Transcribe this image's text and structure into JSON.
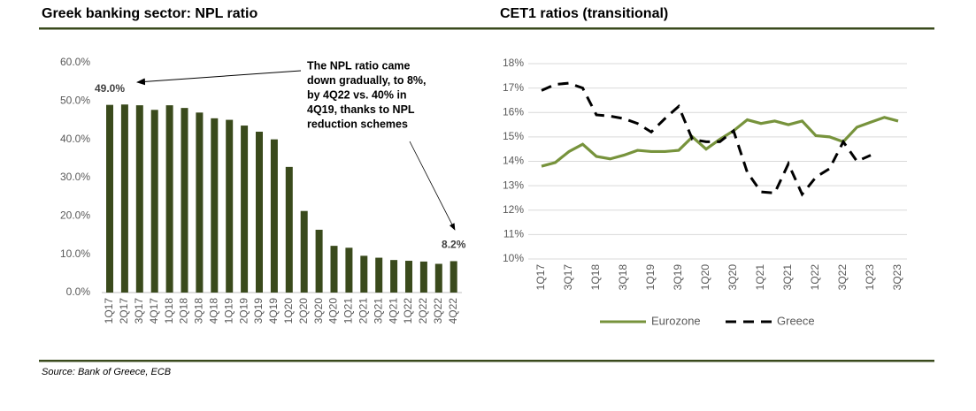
{
  "chart_data": [
    {
      "type": "bar",
      "title": "Greek banking sector: NPL ratio",
      "categories": [
        "1Q17",
        "2Q17",
        "3Q17",
        "4Q17",
        "1Q18",
        "2Q18",
        "3Q18",
        "4Q18",
        "1Q19",
        "2Q19",
        "3Q19",
        "4Q19",
        "1Q20",
        "2Q20",
        "3Q20",
        "4Q20",
        "1Q21",
        "2Q21",
        "3Q21",
        "4Q21",
        "1Q22",
        "2Q22",
        "3Q22",
        "4Q22"
      ],
      "values": [
        49.0,
        49.1,
        48.9,
        47.7,
        48.9,
        48.2,
        47.0,
        45.5,
        45.1,
        43.6,
        42.0,
        40.0,
        32.8,
        21.3,
        16.4,
        12.2,
        11.7,
        9.6,
        9.1,
        8.5,
        8.3,
        8.1,
        7.5,
        8.2
      ],
      "value_labels": [
        "49.0%",
        null,
        null,
        null,
        null,
        null,
        null,
        null,
        null,
        null,
        null,
        null,
        null,
        null,
        null,
        null,
        null,
        null,
        null,
        null,
        null,
        null,
        null,
        "8.2%"
      ],
      "color": "#3a4a1c",
      "ylim": [
        0,
        60
      ],
      "yticks": [
        {
          "value": 0,
          "label": "0.0%"
        },
        {
          "value": 10,
          "label": "10.0%"
        },
        {
          "value": 20,
          "label": "20.0%"
        },
        {
          "value": 30,
          "label": "30.0%"
        },
        {
          "value": 40,
          "label": "40.0%"
        },
        {
          "value": 50,
          "label": "50.0%"
        },
        {
          "value": 60,
          "label": "60.0%"
        }
      ],
      "grid": false,
      "annotation": [
        "The NPL ratio came",
        "down gradually, to 8%,",
        "by 4Q22 vs. 40% in",
        "4Q19, thanks to NPL",
        "reduction schemes"
      ]
    },
    {
      "type": "line",
      "title": "CET1 ratios (transitional)",
      "categories": [
        "1Q17",
        null,
        "3Q17",
        null,
        "1Q18",
        null,
        "3Q18",
        null,
        "1Q19",
        null,
        "3Q19",
        null,
        "1Q20",
        null,
        "3Q20",
        null,
        "1Q21",
        null,
        "3Q21",
        null,
        "1Q22",
        null,
        "3Q22",
        null,
        "1Q23",
        null,
        "3Q23"
      ],
      "series": [
        {
          "name": "Eurozone",
          "color": "#77933c",
          "dash": false,
          "values": [
            13.8,
            13.95,
            14.4,
            14.7,
            14.2,
            14.1,
            14.25,
            14.45,
            14.4,
            14.4,
            14.45,
            15.0,
            14.5,
            14.9,
            15.25,
            15.7,
            15.55,
            15.65,
            15.5,
            15.65,
            15.05,
            15.0,
            14.8,
            15.4,
            15.6,
            15.8,
            15.65
          ]
        },
        {
          "name": "Greece",
          "color": "#000000",
          "dash": true,
          "values": [
            16.9,
            17.15,
            17.2,
            17.0,
            15.9,
            15.85,
            15.75,
            15.55,
            15.2,
            15.75,
            16.25,
            14.9,
            14.8,
            14.8,
            15.25,
            13.55,
            12.75,
            12.7,
            13.9,
            12.65,
            13.35,
            13.7,
            14.8,
            14.0,
            14.25,
            null,
            null
          ]
        }
      ],
      "ylim": [
        10,
        18
      ],
      "yticks": [
        {
          "value": 10,
          "label": "10%"
        },
        {
          "value": 11,
          "label": "11%"
        },
        {
          "value": 12,
          "label": "12%"
        },
        {
          "value": 13,
          "label": "13%"
        },
        {
          "value": 14,
          "label": "14%"
        },
        {
          "value": 15,
          "label": "15%"
        },
        {
          "value": 16,
          "label": "16%"
        },
        {
          "value": 17,
          "label": "17%"
        },
        {
          "value": 18,
          "label": "18%"
        }
      ],
      "grid": true,
      "legend": "bottom"
    }
  ],
  "source": "Source: Bank of Greece, ECB"
}
